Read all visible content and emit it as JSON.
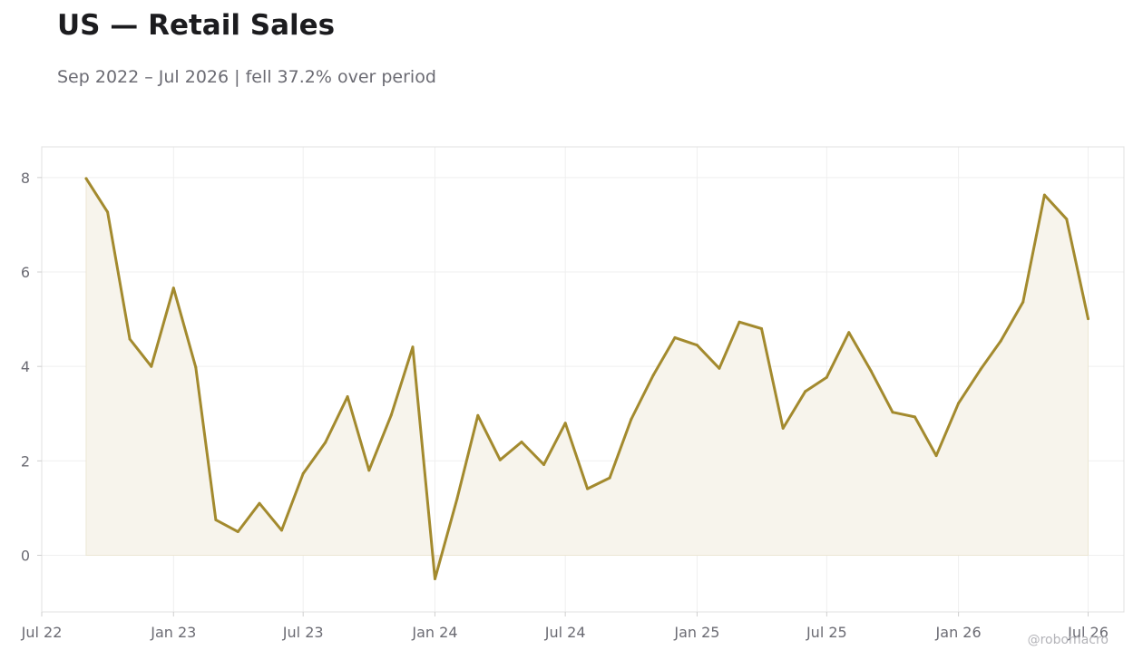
{
  "header": {
    "title": "US — Retail Sales",
    "subtitle": "Sep 2022 – Jul 2026 | fell 37.2% over period"
  },
  "credit": "@robomacro",
  "colors": {
    "line": "#a38a2e",
    "fill": "#f7f4ec",
    "grid": "#efefef",
    "frame": "#e0e0e0",
    "text": "#6b6b73"
  },
  "chart_data": {
    "type": "area",
    "title": "US — Retail Sales",
    "xlabel": "",
    "ylabel": "",
    "grid": true,
    "legend": "none",
    "x_ticks": [
      "Jul 22",
      "Jan 23",
      "Jul 23",
      "Jan 24",
      "Jul 24",
      "Jan 25",
      "Jul 25",
      "Jan 26",
      "Jul 26"
    ],
    "y_ticks": [
      0,
      2,
      4,
      6,
      8
    ],
    "ylim": [
      -1.2,
      8.65
    ],
    "xlim": [
      "2022-07-01",
      "2026-08-20"
    ],
    "series": [
      {
        "x": [
          "2022-09-01",
          "2022-10-01",
          "2022-11-01",
          "2022-12-01",
          "2023-01-01",
          "2023-02-01",
          "2023-03-01",
          "2023-04-01",
          "2023-05-01",
          "2023-06-01",
          "2023-07-01",
          "2023-08-01",
          "2023-09-01",
          "2023-10-01",
          "2023-11-01",
          "2023-12-01",
          "2024-01-01",
          "2024-02-01",
          "2024-03-01",
          "2024-04-01",
          "2024-05-01",
          "2024-06-01",
          "2024-07-01",
          "2024-08-01",
          "2024-09-01",
          "2024-10-01",
          "2024-11-01",
          "2024-12-01",
          "2025-01-01",
          "2025-02-01",
          "2025-03-01",
          "2025-04-01",
          "2025-05-01",
          "2025-06-01",
          "2025-07-01",
          "2025-08-01",
          "2025-09-01",
          "2025-10-01",
          "2025-11-01",
          "2025-12-01",
          "2026-01-01",
          "2026-02-01",
          "2026-03-01",
          "2026-04-01",
          "2026-05-01",
          "2026-06-01",
          "2026-07-01"
        ],
        "values": [
          7.98,
          7.27,
          4.58,
          4.0,
          5.66,
          3.98,
          0.75,
          0.5,
          1.1,
          0.53,
          1.73,
          2.39,
          3.36,
          1.8,
          2.97,
          4.41,
          -0.5,
          1.2,
          2.96,
          2.02,
          2.4,
          1.92,
          2.8,
          1.41,
          1.64,
          2.88,
          3.82,
          4.61,
          4.45,
          3.96,
          4.94,
          4.8,
          2.69,
          3.47,
          3.77,
          4.72,
          3.9,
          3.03,
          2.93,
          2.11,
          3.22,
          3.94,
          4.54,
          5.36,
          7.63,
          7.12,
          5.01
        ]
      }
    ]
  }
}
